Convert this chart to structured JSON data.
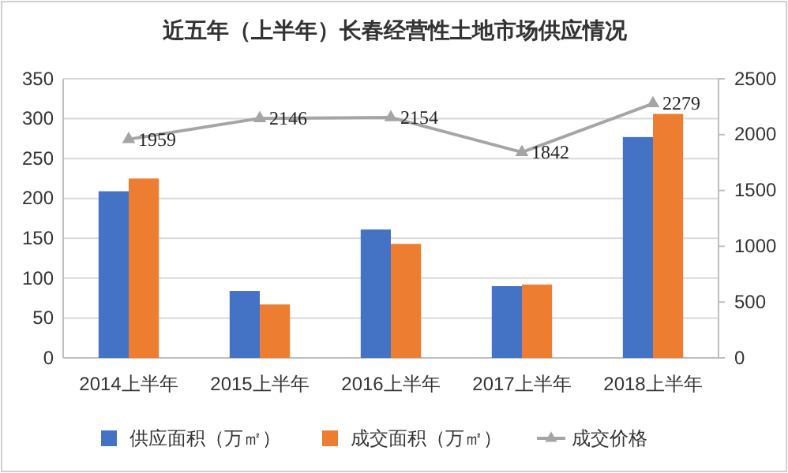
{
  "chart_data": {
    "type": "bar",
    "title": "近五年（上半年）长春经营性土地市场供应情况",
    "categories": [
      "2014上半年",
      "2015上半年",
      "2016上半年",
      "2017上半年",
      "2018上半年"
    ],
    "series": [
      {
        "name": "供应面积（万㎡）",
        "color": "#4472c4",
        "values": [
          209,
          84,
          161,
          90,
          277
        ]
      },
      {
        "name": "成交面积（万㎡）",
        "color": "#ed7d31",
        "values": [
          225,
          67,
          143,
          92,
          306
        ]
      },
      {
        "name": "成交价格",
        "type": "line",
        "axis": "y2",
        "color": "#a5a5a5",
        "values": [
          1959,
          2146,
          2154,
          1842,
          2279
        ],
        "data_labels": true,
        "marker": "triangle"
      }
    ],
    "ylim": [
      0,
      350
    ],
    "yticks": [
      0,
      50,
      100,
      150,
      200,
      250,
      300,
      350
    ],
    "y2lim": [
      0,
      2500
    ],
    "y2ticks": [
      0,
      500,
      1000,
      1500,
      2000,
      2500
    ],
    "grid": "y",
    "legend": "bottom"
  }
}
